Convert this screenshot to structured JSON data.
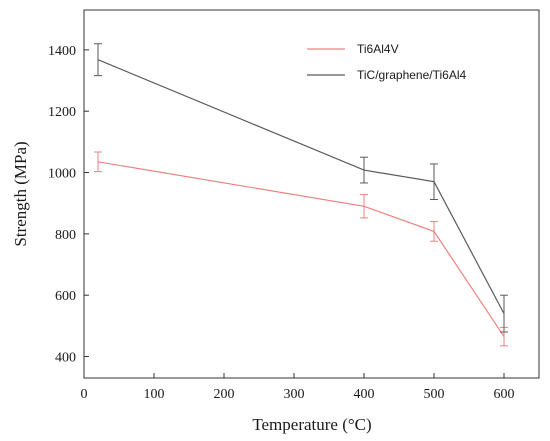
{
  "chart_data": {
    "type": "line",
    "xlabel": "Temperature (°C)",
    "ylabel": "Strength (MPa)",
    "xlim": [
      0,
      650
    ],
    "ylim": [
      330,
      1530
    ],
    "x_ticks": [
      0,
      100,
      200,
      300,
      400,
      500,
      600
    ],
    "y_ticks": [
      400,
      600,
      800,
      1000,
      1200,
      1400
    ],
    "x_tick_labels": [
      "0",
      "100",
      "200",
      "300",
      "400",
      "500",
      "600"
    ],
    "y_tick_labels": [
      "400",
      "600",
      "800",
      "1000",
      "1200",
      "1400"
    ],
    "grid": false,
    "legend_position": "top-right",
    "series": [
      {
        "name": "Ti6Al4V",
        "color": "#f08080",
        "x": [
          20,
          400,
          500,
          600
        ],
        "y": [
          1035,
          890,
          808,
          465
        ],
        "error": [
          32,
          38,
          32,
          30
        ]
      },
      {
        "name": "TiC/graphene/Ti6Al4",
        "color": "#5a5a5a",
        "x": [
          20,
          400,
          500,
          600
        ],
        "y": [
          1368,
          1008,
          970,
          540
        ],
        "error": [
          52,
          42,
          58,
          60
        ]
      }
    ]
  }
}
